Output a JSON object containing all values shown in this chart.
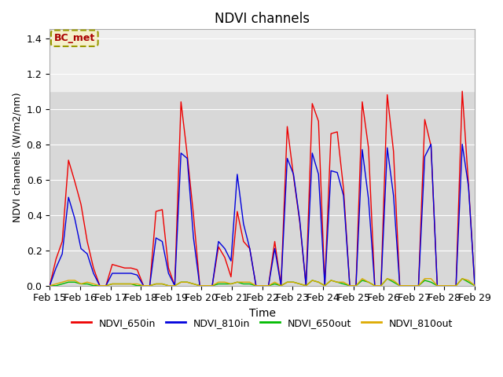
{
  "title": "NDVI channels",
  "xlabel": "Time",
  "ylabel": "NDVI channels (W/m2/nm)",
  "ylim": [
    0,
    1.45
  ],
  "xlim": [
    0,
    14
  ],
  "annotation_text": "BC_met",
  "shaded_region_light": [
    1.1,
    1.45
  ],
  "shaded_region_dark": [
    0.0,
    1.1
  ],
  "legend": [
    "NDVI_650in",
    "NDVI_810in",
    "NDVI_650out",
    "NDVI_810out"
  ],
  "line_colors": [
    "#ee0000",
    "#0000dd",
    "#00bb00",
    "#ddaa00"
  ],
  "xtick_labels": [
    "Feb 15",
    "Feb 16",
    "Feb 17",
    "Feb 18",
    "Feb 19",
    "Feb 20",
    "Feb 21",
    "Feb 22",
    "Feb 23",
    "Feb 24",
    "Feb 25",
    "Feb 26",
    "Feb 27",
    "Feb 28",
    "Feb 29"
  ],
  "bg_dark": "#d8d8d8",
  "bg_light": "#eeeeee",
  "grid_color": "#ffffff",
  "spike_650in": [
    0.0,
    0.15,
    0.25,
    0.71,
    0.59,
    0.46,
    0.25,
    0.1,
    0.0,
    0.0,
    0.12,
    0.11,
    0.1,
    0.1,
    0.09,
    0.0,
    0.0,
    0.42,
    0.43,
    0.1,
    0.0,
    1.04,
    0.74,
    0.4,
    0.0,
    0.0,
    0.0,
    0.22,
    0.16,
    0.05,
    0.42,
    0.25,
    0.21,
    0.0,
    0.0,
    0.0,
    0.25,
    0.0,
    0.9,
    0.62,
    0.36,
    0.0,
    1.03,
    0.93,
    0.0,
    0.86,
    0.87,
    0.55,
    0.0,
    0.0,
    1.04,
    0.78,
    0.0,
    0.0,
    1.08,
    0.76,
    0.0,
    0.0,
    0.0,
    0.0,
    0.94,
    0.79,
    0.0,
    0.0,
    0.0,
    0.0,
    1.1,
    0.57,
    0.0
  ],
  "spike_810in": [
    0.0,
    0.1,
    0.18,
    0.5,
    0.38,
    0.21,
    0.18,
    0.07,
    0.0,
    0.0,
    0.07,
    0.07,
    0.07,
    0.07,
    0.06,
    0.0,
    0.0,
    0.27,
    0.25,
    0.07,
    0.0,
    0.75,
    0.72,
    0.27,
    0.0,
    0.0,
    0.0,
    0.25,
    0.21,
    0.14,
    0.63,
    0.35,
    0.21,
    0.0,
    0.0,
    0.0,
    0.21,
    0.0,
    0.72,
    0.63,
    0.37,
    0.0,
    0.75,
    0.63,
    0.0,
    0.65,
    0.64,
    0.51,
    0.0,
    0.0,
    0.77,
    0.49,
    0.0,
    0.0,
    0.78,
    0.51,
    0.0,
    0.0,
    0.0,
    0.0,
    0.73,
    0.8,
    0.0,
    0.0,
    0.0,
    0.0,
    0.8,
    0.56,
    0.0
  ],
  "spike_650out": [
    0.0,
    0.0,
    0.01,
    0.02,
    0.02,
    0.01,
    0.01,
    0.0,
    0.0,
    0.0,
    0.01,
    0.01,
    0.01,
    0.01,
    0.0,
    0.0,
    0.0,
    0.01,
    0.01,
    0.0,
    0.0,
    0.02,
    0.02,
    0.01,
    0.0,
    0.0,
    0.0,
    0.01,
    0.01,
    0.01,
    0.02,
    0.01,
    0.01,
    0.0,
    0.0,
    0.0,
    0.01,
    0.0,
    0.02,
    0.02,
    0.01,
    0.0,
    0.03,
    0.02,
    0.0,
    0.03,
    0.02,
    0.01,
    0.0,
    0.0,
    0.03,
    0.02,
    0.0,
    0.0,
    0.04,
    0.02,
    0.0,
    0.0,
    0.0,
    0.0,
    0.03,
    0.02,
    0.0,
    0.0,
    0.0,
    0.0,
    0.04,
    0.02,
    0.0
  ],
  "spike_810out": [
    0.0,
    0.01,
    0.02,
    0.03,
    0.03,
    0.01,
    0.02,
    0.01,
    0.0,
    0.0,
    0.01,
    0.01,
    0.01,
    0.01,
    0.01,
    0.0,
    0.0,
    0.01,
    0.01,
    0.0,
    0.0,
    0.02,
    0.02,
    0.01,
    0.0,
    0.0,
    0.0,
    0.02,
    0.02,
    0.01,
    0.02,
    0.02,
    0.02,
    0.0,
    0.0,
    0.0,
    0.02,
    0.0,
    0.02,
    0.02,
    0.01,
    0.0,
    0.03,
    0.02,
    0.0,
    0.03,
    0.02,
    0.02,
    0.0,
    0.0,
    0.04,
    0.02,
    0.0,
    0.0,
    0.04,
    0.03,
    0.0,
    0.0,
    0.0,
    0.0,
    0.04,
    0.04,
    0.0,
    0.0,
    0.0,
    0.0,
    0.04,
    0.03,
    0.0
  ]
}
